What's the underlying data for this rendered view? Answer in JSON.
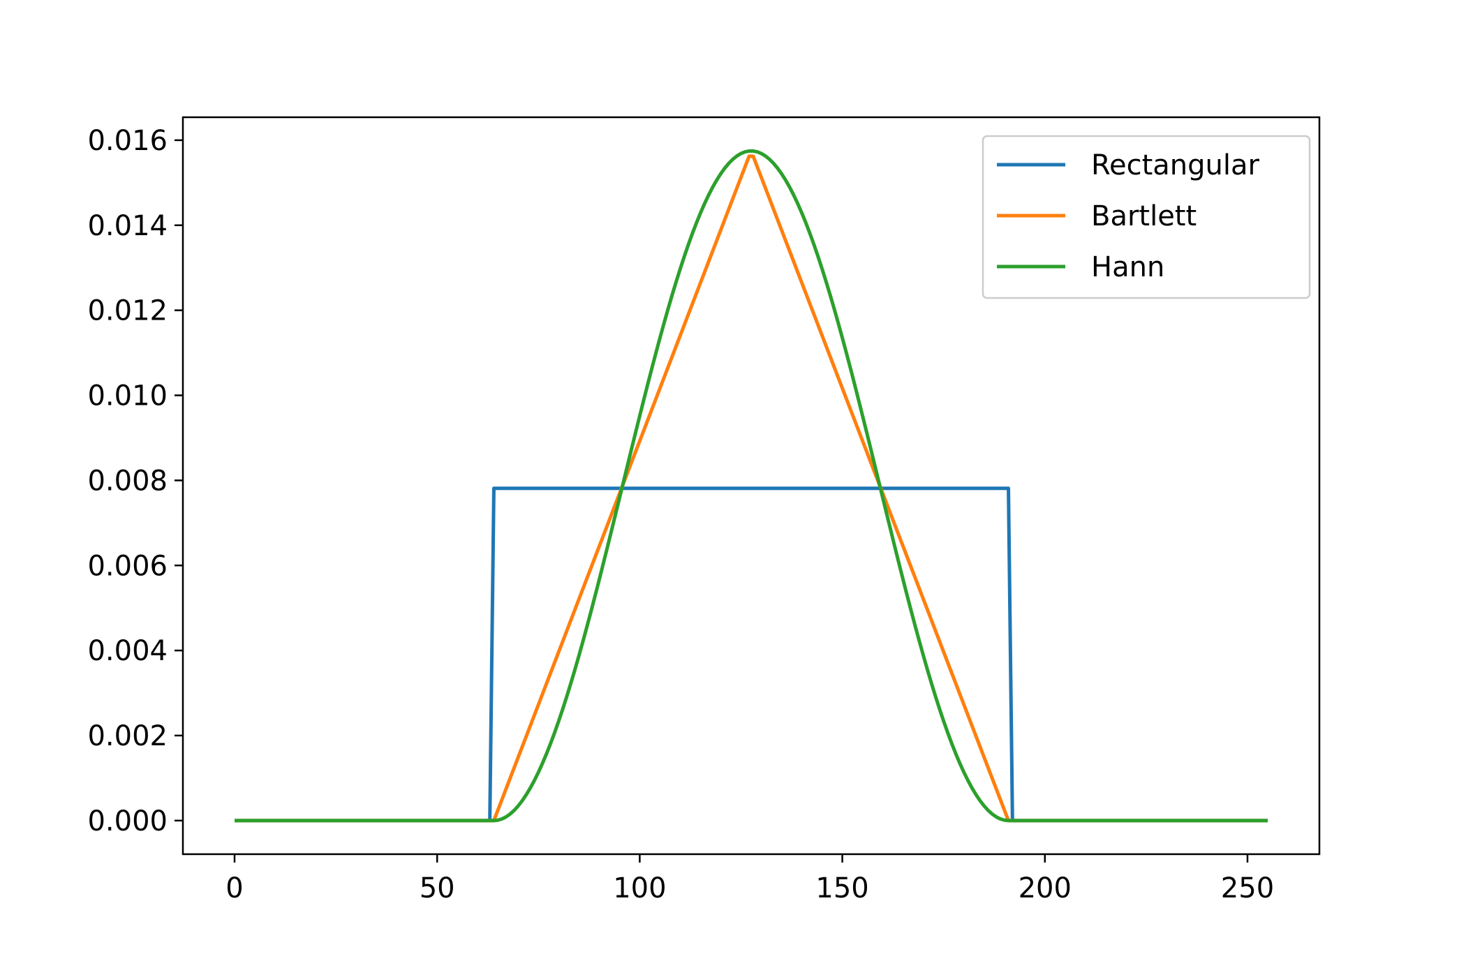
{
  "chart_data": {
    "type": "line",
    "title": "",
    "xlabel": "",
    "ylabel": "",
    "xlim": [
      -12.75,
      267.75
    ],
    "ylim": [
      -0.00079,
      0.01654
    ],
    "xticks": [
      0,
      50,
      100,
      150,
      200,
      250
    ],
    "xtick_labels": [
      "0",
      "50",
      "100",
      "150",
      "200",
      "250"
    ],
    "yticks": [
      0.0,
      0.002,
      0.004,
      0.006,
      0.008,
      0.01,
      0.012,
      0.014,
      0.016
    ],
    "ytick_labels": [
      "0.000",
      "0.002",
      "0.004",
      "0.006",
      "0.008",
      "0.010",
      "0.012",
      "0.014",
      "0.016"
    ],
    "grid": false,
    "legend_position": "top-right",
    "x": {
      "start": 0,
      "end": 255,
      "step": 1
    },
    "series": [
      {
        "name": "Rectangular",
        "color": "#1f77b4",
        "shape": "rectangular",
        "support": [
          64,
          191
        ],
        "peak": 0.0078125
      },
      {
        "name": "Bartlett",
        "color": "#ff7f0e",
        "shape": "bartlett",
        "support": [
          64,
          191
        ],
        "peak": 0.015748
      },
      {
        "name": "Hann",
        "color": "#2ca02c",
        "shape": "hann",
        "support": [
          64,
          191
        ],
        "peak": 0.015748
      }
    ]
  }
}
